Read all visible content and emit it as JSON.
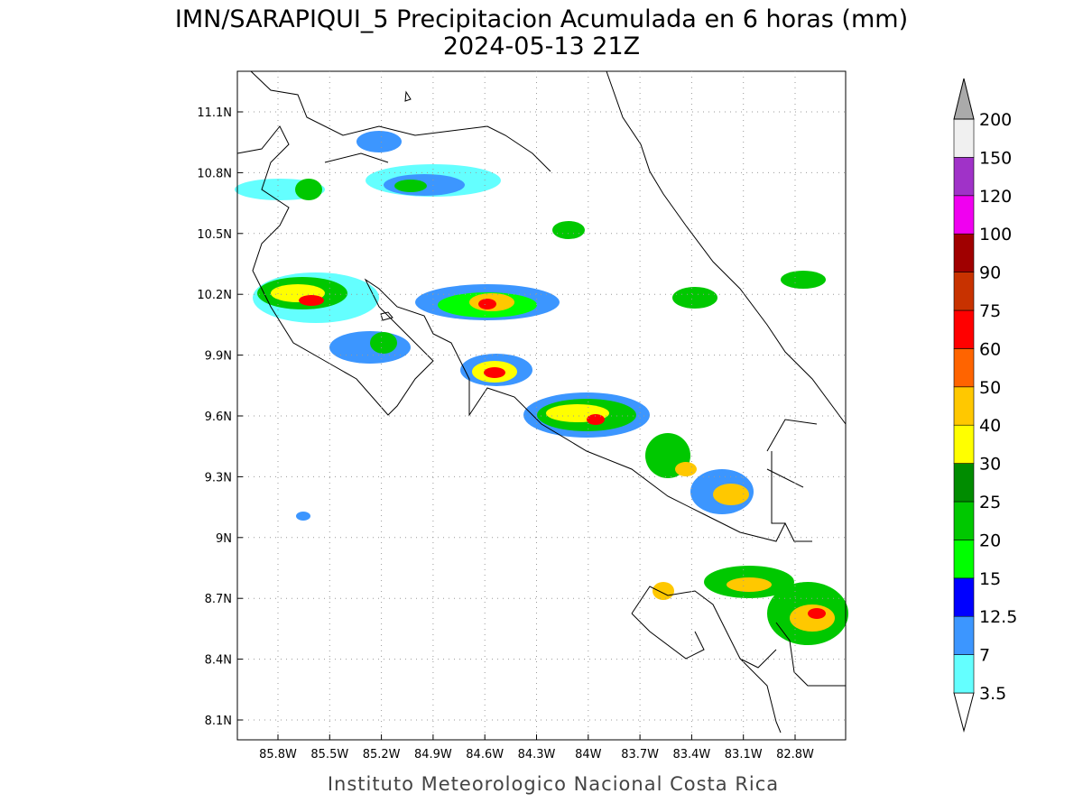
{
  "title": "IMN/SARAPIQUI_5 Precipitacion Acumulada en 6 horas (mm)",
  "subtitle": "2024-05-13 21Z",
  "lon_labels": [
    "85.8W",
    "85.5W",
    "85.2W",
    "84.9W",
    "84.6W",
    "84.3W",
    "84W",
    "83.7W",
    "83.4W",
    "83.1W",
    "82.8W"
  ],
  "lat_labels": [
    "11.1N",
    "10.8N",
    "10.5N",
    "10.2N",
    "9.9N",
    "9.6N",
    "9.3N",
    "9N",
    "8.7N",
    "8.4N",
    "8.1N"
  ],
  "colorbar": {
    "levels": [
      3.5,
      7,
      12.5,
      15,
      20,
      25,
      30,
      40,
      50,
      60,
      75,
      90,
      100,
      120,
      150,
      200
    ],
    "colors": [
      "#ffffff",
      "#64ffff",
      "#3c96ff",
      "#0000ff",
      "#00ff00",
      "#00c800",
      "#008c00",
      "#ffff00",
      "#ffc800",
      "#ff6400",
      "#ff0000",
      "#c83200",
      "#a00000",
      "#f000f0",
      "#a032c8",
      "#f0f0f0",
      "#aaaaaa"
    ]
  },
  "footer": "Instituto Meteorologico Nacional Costa Rica"
}
